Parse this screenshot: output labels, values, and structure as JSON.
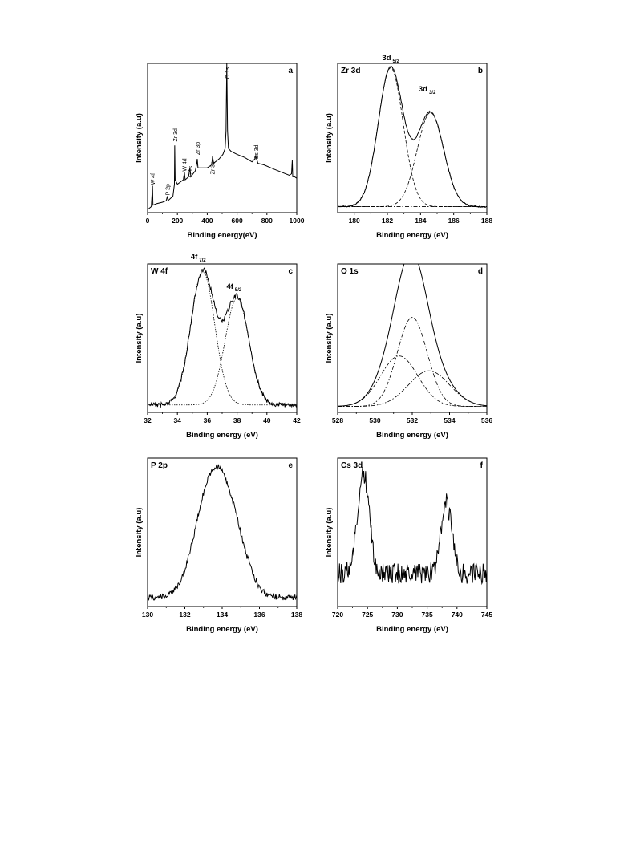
{
  "chart_data": [
    {
      "letter": "a",
      "type": "line",
      "title": "",
      "xlabel": "Binding  energy(eV)",
      "ylabel": "Intensity (a.u)",
      "xlim": [
        0,
        1000
      ],
      "ylim": [
        0,
        100
      ],
      "xticks": [
        "0",
        "200",
        "400",
        "600",
        "800",
        "1000"
      ],
      "annotations": [
        {
          "text": "W 4f",
          "x": 33,
          "y": 17
        },
        {
          "text": "P 2p",
          "x": 133,
          "y": 10
        },
        {
          "text": "Zr 3d",
          "x": 182,
          "y": 46
        },
        {
          "text": "W 4d",
          "x": 245,
          "y": 26
        },
        {
          "text": "C 1s",
          "x": 285,
          "y": 22
        },
        {
          "text": "Zr 3p",
          "x": 333,
          "y": 37
        },
        {
          "text": "Zr 3s",
          "x": 432,
          "y": 24
        },
        {
          "text": "O 1s",
          "x": 531,
          "y": 88
        },
        {
          "text": "Cs 3d",
          "x": 725,
          "y": 34
        }
      ],
      "series": [
        {
          "style": "solid",
          "points": [
            [
              0,
              2
            ],
            [
              25,
              4
            ],
            [
              33,
              18
            ],
            [
              36,
              5
            ],
            [
              60,
              6
            ],
            [
              100,
              7
            ],
            [
              125,
              8
            ],
            [
              133,
              11
            ],
            [
              137,
              8
            ],
            [
              170,
              11
            ],
            [
              180,
              19
            ],
            [
              182,
              45
            ],
            [
              185,
              22
            ],
            [
              200,
              19
            ],
            [
              240,
              22
            ],
            [
              247,
              27
            ],
            [
              252,
              22
            ],
            [
              275,
              24
            ],
            [
              284,
              30
            ],
            [
              290,
              24
            ],
            [
              320,
              28
            ],
            [
              330,
              33
            ],
            [
              333,
              36
            ],
            [
              338,
              30
            ],
            [
              400,
              30
            ],
            [
              430,
              32
            ],
            [
              436,
              38
            ],
            [
              442,
              33
            ],
            [
              480,
              36
            ],
            [
              505,
              39
            ],
            [
              520,
              43
            ],
            [
              526,
              55
            ],
            [
              531,
              100
            ],
            [
              536,
              55
            ],
            [
              542,
              43
            ],
            [
              560,
              41
            ],
            [
              600,
              39
            ],
            [
              650,
              37
            ],
            [
              700,
              34
            ],
            [
              720,
              36
            ],
            [
              725,
              38
            ],
            [
              740,
              33
            ],
            [
              780,
              32
            ],
            [
              850,
              29
            ],
            [
              900,
              27
            ],
            [
              950,
              25
            ],
            [
              965,
              26
            ],
            [
              970,
              35
            ],
            [
              973,
              24
            ],
            [
              985,
              24
            ],
            [
              1000,
              23
            ]
          ]
        }
      ]
    },
    {
      "letter": "b",
      "type": "line",
      "title": "Zr 3d",
      "xlabel": "Binding  energy (eV)",
      "ylabel": "Intensity (a.u)",
      "xlim": [
        179,
        188
      ],
      "ylim": [
        0,
        100
      ],
      "xticks": [
        "180",
        "182",
        "184",
        "186",
        "188"
      ],
      "peak_labels": [
        {
          "main": "3d",
          "sub": "5/2",
          "x": 182.2,
          "y": 100
        },
        {
          "main": "3d",
          "sub": "3/2",
          "x": 184.4,
          "y": 79
        }
      ],
      "series": [
        {
          "style": "solid",
          "shape": "fit",
          "base": 4,
          "noise": 0.5,
          "peaks": [
            [
              182.2,
              93,
              0.75
            ],
            [
              184.6,
              63,
              0.8
            ]
          ]
        },
        {
          "style": "dashed",
          "shape": "fit",
          "base": 4,
          "noise": 0,
          "peaks": [
            [
              182.2,
              93,
              0.75
            ]
          ]
        },
        {
          "style": "dashed",
          "shape": "fit",
          "base": 4,
          "noise": 0,
          "peaks": [
            [
              184.6,
              63,
              0.8
            ]
          ]
        },
        {
          "style": "dashdot",
          "points": [
            [
              179,
              4
            ],
            [
              188,
              4
            ]
          ]
        }
      ]
    },
    {
      "letter": "c",
      "type": "line",
      "title": "W 4f",
      "xlabel": "Binding energy (eV)",
      "ylabel": "Intensity (a.u)",
      "xlim": [
        32,
        42
      ],
      "ylim": [
        0,
        100
      ],
      "xticks": [
        "32",
        "34",
        "36",
        "38",
        "40",
        "42"
      ],
      "peak_labels": [
        {
          "main": "4f",
          "sub": "7/2",
          "x": 35.4,
          "y": 101
        },
        {
          "main": "4f",
          "sub": "5/2",
          "x": 37.8,
          "y": 81
        }
      ],
      "series": [
        {
          "style": "solid",
          "shape": "fit",
          "base": 5,
          "noise": 1.5,
          "peaks": [
            [
              35.7,
              90,
              0.8
            ],
            [
              38,
              72,
              0.8
            ]
          ]
        },
        {
          "style": "dotted",
          "shape": "fit",
          "base": 5,
          "noise": 0,
          "peaks": [
            [
              35.7,
              90,
              0.8
            ]
          ]
        },
        {
          "style": "dotted",
          "shape": "fit",
          "base": 5,
          "noise": 0,
          "peaks": [
            [
              38,
              72,
              0.8
            ]
          ]
        }
      ]
    },
    {
      "letter": "d",
      "type": "line",
      "title": "O 1s",
      "xlabel": "Binding energy (eV)",
      "ylabel": "Intensity (a.u)",
      "xlim": [
        528,
        536
      ],
      "ylim": [
        0,
        100
      ],
      "xticks": [
        "528",
        "530",
        "532",
        "534",
        "536"
      ],
      "series": [
        {
          "style": "solid",
          "shape": "fit",
          "base": 4,
          "noise": 0,
          "peaks": [
            [
              531.3,
              34,
              1.0
            ],
            [
              532,
              60,
              0.8
            ],
            [
              532.9,
              24,
              1.1
            ]
          ]
        },
        {
          "style": "dashdot",
          "shape": "fit",
          "base": 4,
          "noise": 0,
          "peaks": [
            [
              532,
              60,
              0.8
            ]
          ]
        },
        {
          "style": "dashdot",
          "shape": "fit",
          "base": 4,
          "noise": 0,
          "peaks": [
            [
              531.3,
              34,
              1.0
            ]
          ]
        },
        {
          "style": "dashdot",
          "shape": "fit",
          "base": 4,
          "noise": 0,
          "peaks": [
            [
              532.9,
              24,
              1.1
            ]
          ]
        }
      ]
    },
    {
      "letter": "e",
      "type": "line",
      "title": "P 2p",
      "xlabel": "Binding energy (eV)",
      "ylabel": "Intensity (a.u)",
      "xlim": [
        130,
        138
      ],
      "ylim": [
        0,
        100
      ],
      "xticks": [
        "130",
        "132",
        "134",
        "136",
        "138"
      ],
      "series": [
        {
          "style": "solid",
          "shape": "fit",
          "base": 6,
          "noise": 2,
          "peaks": [
            [
              133.2,
              55,
              0.8
            ],
            [
              134.3,
              55,
              0.85
            ]
          ]
        }
      ]
    },
    {
      "letter": "f",
      "type": "line",
      "title": "Cs 3d",
      "xlabel": "Binding  energy (eV)",
      "ylabel": "Intensity (a.u)",
      "xlim": [
        720,
        745
      ],
      "ylim": [
        0,
        100
      ],
      "xticks": [
        "720",
        "725",
        "730",
        "735",
        "740",
        "745"
      ],
      "series": [
        {
          "style": "solid",
          "shape": "fit",
          "base": 22,
          "noise": 7,
          "peaks": [
            [
              724.3,
              68,
              1.0
            ],
            [
              738.2,
              48,
              0.9
            ]
          ]
        }
      ]
    }
  ]
}
